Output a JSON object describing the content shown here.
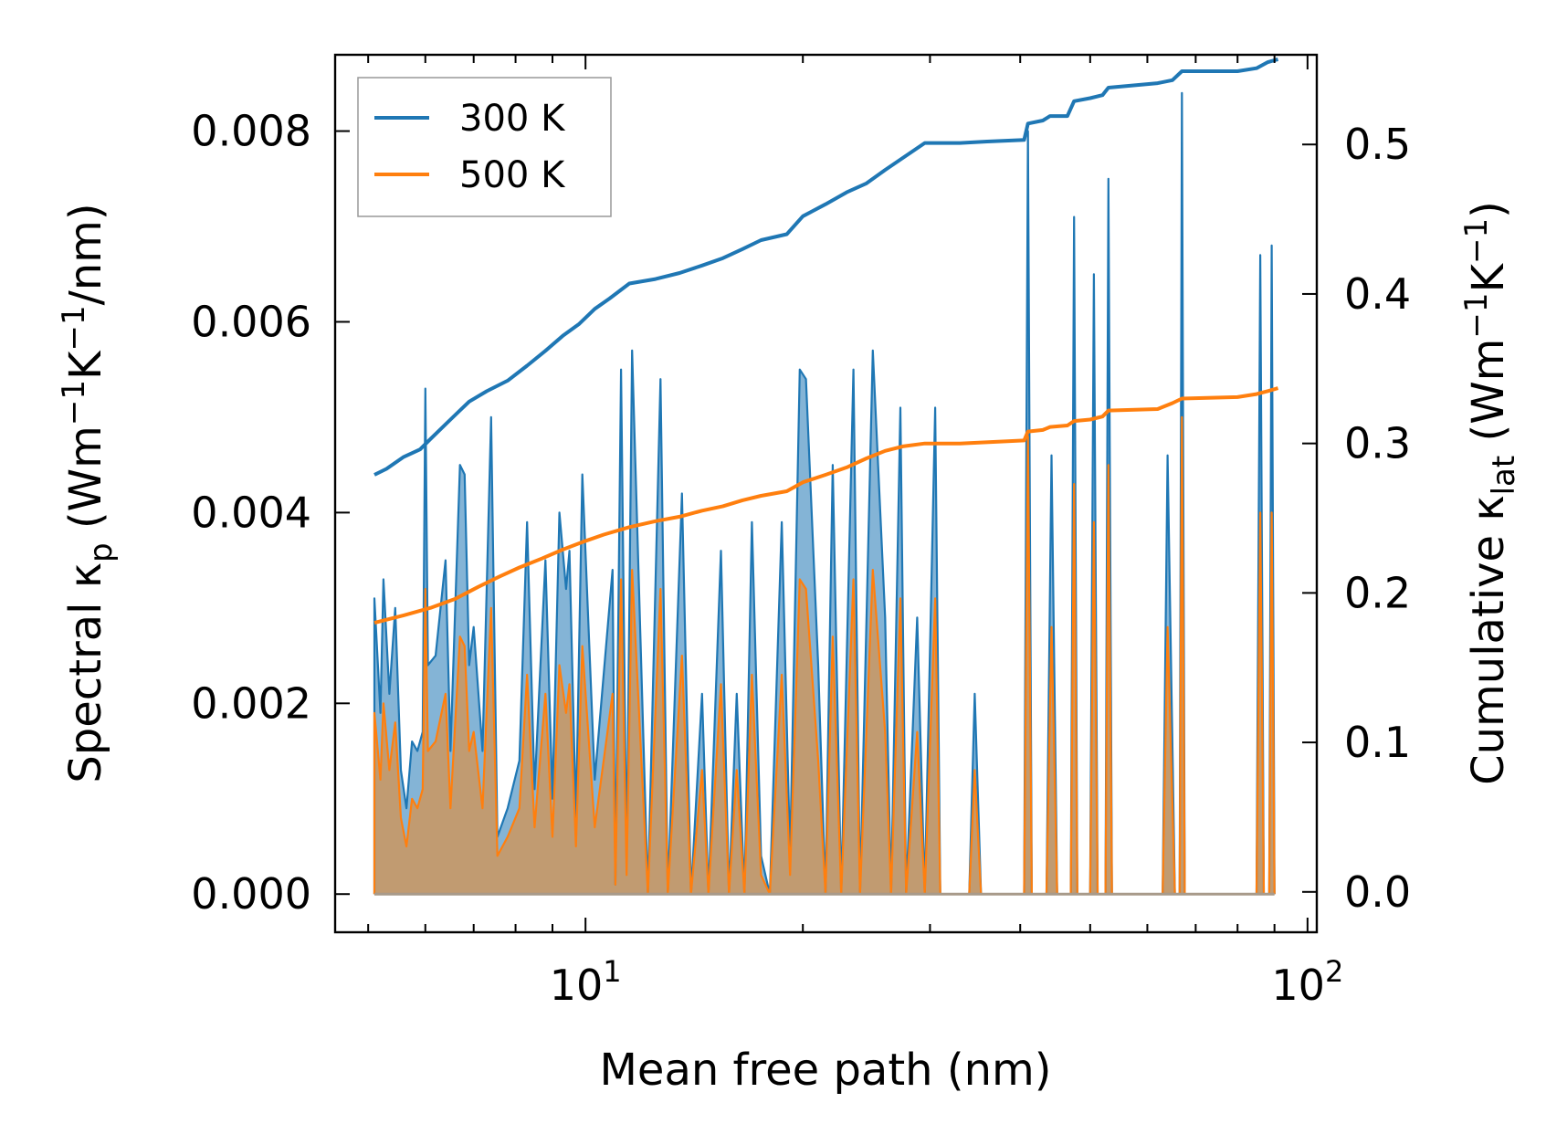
{
  "chart_data": {
    "type": "line",
    "title": "",
    "x_scale": "log",
    "xlabel": "Mean free path (nm)",
    "ylabel_left": {
      "main": "Spectral κ",
      "sub": "p",
      "units_open": " (Wm",
      "sup1": "−1",
      "mid": "K",
      "sup2": "−1",
      "units_close": "/nm)"
    },
    "ylabel_right": {
      "main": "Cumulative κ",
      "sub": "lat",
      "units_open": " (Wm",
      "sup1": "−1",
      "mid": "K",
      "sup2": "−1",
      "units_close": ")"
    },
    "xlim": [
      4.5,
      103
    ],
    "ylim_left": [
      -0.0004,
      0.0088
    ],
    "ylim_right": [
      -0.027,
      0.56
    ],
    "xticks": [
      {
        "value": 10,
        "base": "10",
        "exp": "1"
      },
      {
        "value": 100,
        "base": "10",
        "exp": "2"
      }
    ],
    "yticks_left": [
      "0.000",
      "0.002",
      "0.004",
      "0.006",
      "0.008"
    ],
    "yticks_right": [
      "0.0",
      "0.1",
      "0.2",
      "0.3",
      "0.4",
      "0.5"
    ],
    "legend": {
      "location": "upper-left",
      "entries": [
        {
          "label": "300 K",
          "color": "#1f77b4"
        },
        {
          "label": "500 K",
          "color": "#ff7f0e"
        }
      ]
    },
    "colors": {
      "blue": "#1f77b4",
      "orange": "#ff7f0e",
      "fill_overlap": "#c49a6c"
    },
    "spectral_300K": [
      [
        5.1,
        0
      ],
      [
        5.1,
        0.0031
      ],
      [
        5.2,
        0.0019
      ],
      [
        5.25,
        0.0033
      ],
      [
        5.35,
        0.0021
      ],
      [
        5.45,
        0.003
      ],
      [
        5.55,
        0.0013
      ],
      [
        5.65,
        0.0009
      ],
      [
        5.75,
        0.0016
      ],
      [
        5.85,
        0.0015
      ],
      [
        5.95,
        0.0017
      ],
      [
        6.0,
        0.0053
      ],
      [
        6.05,
        0.0024
      ],
      [
        6.2,
        0.0025
      ],
      [
        6.4,
        0.0035
      ],
      [
        6.5,
        0.0015
      ],
      [
        6.7,
        0.0045
      ],
      [
        6.8,
        0.0044
      ],
      [
        6.9,
        0.0024
      ],
      [
        7.0,
        0.0028
      ],
      [
        7.2,
        0.0015
      ],
      [
        7.4,
        0.005
      ],
      [
        7.55,
        0.0006
      ],
      [
        7.8,
        0.0009
      ],
      [
        8.1,
        0.0014
      ],
      [
        8.3,
        0.0039
      ],
      [
        8.5,
        0.0011
      ],
      [
        8.8,
        0.0035
      ],
      [
        9.0,
        0.001
      ],
      [
        9.2,
        0.004
      ],
      [
        9.4,
        0.0032
      ],
      [
        9.5,
        0.0036
      ],
      [
        9.7,
        0.0008
      ],
      [
        9.9,
        0.0044
      ],
      [
        10.3,
        0.0012
      ],
      [
        10.9,
        0.0034
      ],
      [
        11.0,
        0.0001
      ],
      [
        11.2,
        0.0055
      ],
      [
        11.4,
        0.0003
      ],
      [
        11.6,
        0.0057
      ],
      [
        12.2,
        0
      ],
      [
        12.7,
        0.0054
      ],
      [
        13.0,
        0
      ],
      [
        13.6,
        0.0042
      ],
      [
        14.0,
        0
      ],
      [
        14.5,
        0.0021
      ],
      [
        14.8,
        0
      ],
      [
        15.4,
        0.0036
      ],
      [
        15.8,
        0
      ],
      [
        16.2,
        0.0021
      ],
      [
        16.6,
        0
      ],
      [
        17.0,
        0.0039
      ],
      [
        17.5,
        0.0004
      ],
      [
        18.0,
        0
      ],
      [
        18.7,
        0.0039
      ],
      [
        19.2,
        0.0004
      ],
      [
        19.8,
        0.0055
      ],
      [
        20.2,
        0.0054
      ],
      [
        21.0,
        0.0024
      ],
      [
        21.5,
        0
      ],
      [
        22.0,
        0.0045
      ],
      [
        22.6,
        0
      ],
      [
        23.5,
        0.0055
      ],
      [
        24.0,
        0
      ],
      [
        25.0,
        0.0057
      ],
      [
        26.0,
        0.0029
      ],
      [
        26.5,
        0
      ],
      [
        27.3,
        0.0051
      ],
      [
        27.8,
        0
      ],
      [
        28.8,
        0.0029
      ],
      [
        29.5,
        0
      ],
      [
        30.5,
        0.0051
      ],
      [
        31.0,
        0
      ],
      [
        34.0,
        0
      ],
      [
        34.6,
        0.0021
      ],
      [
        35.3,
        0
      ],
      [
        40.5,
        0
      ],
      [
        41.0,
        0.008
      ],
      [
        41.5,
        0
      ],
      [
        43.5,
        0
      ],
      [
        44.2,
        0.0046
      ],
      [
        45.0,
        0
      ],
      [
        47.0,
        0
      ],
      [
        47.5,
        0.0071
      ],
      [
        48.0,
        0
      ],
      [
        50.0,
        0
      ],
      [
        50.6,
        0.0065
      ],
      [
        51.2,
        0
      ],
      [
        52.5,
        0
      ],
      [
        53.0,
        0.0075
      ],
      [
        53.6,
        0
      ],
      [
        63.0,
        0
      ],
      [
        64.0,
        0.0046
      ],
      [
        65.5,
        0
      ],
      [
        66.5,
        0
      ],
      [
        67.0,
        0.0084
      ],
      [
        67.6,
        0
      ],
      [
        85.0,
        0
      ],
      [
        86.0,
        0.0067
      ],
      [
        87.0,
        0
      ],
      [
        88.5,
        0
      ],
      [
        89.2,
        0.0068
      ],
      [
        90.0,
        0
      ]
    ],
    "spectral_500K": [
      [
        5.1,
        0
      ],
      [
        5.1,
        0.0019
      ],
      [
        5.2,
        0.0012
      ],
      [
        5.25,
        0.002
      ],
      [
        5.35,
        0.0013
      ],
      [
        5.45,
        0.0018
      ],
      [
        5.55,
        0.0008
      ],
      [
        5.65,
        0.0005
      ],
      [
        5.75,
        0.001
      ],
      [
        5.85,
        0.0009
      ],
      [
        5.95,
        0.0011
      ],
      [
        6.0,
        0.0032
      ],
      [
        6.05,
        0.0015
      ],
      [
        6.2,
        0.0016
      ],
      [
        6.4,
        0.0021
      ],
      [
        6.5,
        0.0009
      ],
      [
        6.7,
        0.0027
      ],
      [
        6.8,
        0.0026
      ],
      [
        6.9,
        0.0015
      ],
      [
        7.0,
        0.0017
      ],
      [
        7.2,
        0.0009
      ],
      [
        7.4,
        0.003
      ],
      [
        7.55,
        0.0004
      ],
      [
        7.8,
        0.0006
      ],
      [
        8.1,
        0.0009
      ],
      [
        8.3,
        0.0023
      ],
      [
        8.5,
        0.0007
      ],
      [
        8.8,
        0.0021
      ],
      [
        9.0,
        0.0006
      ],
      [
        9.2,
        0.0024
      ],
      [
        9.4,
        0.0019
      ],
      [
        9.5,
        0.0022
      ],
      [
        9.7,
        0.0005
      ],
      [
        9.9,
        0.0026
      ],
      [
        10.3,
        0.0007
      ],
      [
        10.9,
        0.0021
      ],
      [
        11.0,
        0.0001
      ],
      [
        11.2,
        0.0033
      ],
      [
        11.4,
        0.0002
      ],
      [
        11.6,
        0.0034
      ],
      [
        12.2,
        0
      ],
      [
        12.7,
        0.0032
      ],
      [
        13.0,
        0
      ],
      [
        13.6,
        0.0025
      ],
      [
        14.0,
        0
      ],
      [
        14.5,
        0.0013
      ],
      [
        14.8,
        0
      ],
      [
        15.4,
        0.0022
      ],
      [
        15.8,
        0
      ],
      [
        16.2,
        0.0013
      ],
      [
        16.6,
        0
      ],
      [
        17.0,
        0.0023
      ],
      [
        17.5,
        0.0002
      ],
      [
        18.0,
        0
      ],
      [
        18.7,
        0.0023
      ],
      [
        19.2,
        0.0002
      ],
      [
        19.8,
        0.0033
      ],
      [
        20.2,
        0.0032
      ],
      [
        21.0,
        0.0014
      ],
      [
        21.5,
        0
      ],
      [
        22.0,
        0.0027
      ],
      [
        22.6,
        0
      ],
      [
        23.5,
        0.0033
      ],
      [
        24.0,
        0
      ],
      [
        25.0,
        0.0034
      ],
      [
        26.0,
        0.0017
      ],
      [
        26.5,
        0
      ],
      [
        27.3,
        0.0031
      ],
      [
        27.8,
        0
      ],
      [
        28.8,
        0.0017
      ],
      [
        29.5,
        0
      ],
      [
        30.5,
        0.0031
      ],
      [
        31.0,
        0
      ],
      [
        34.0,
        0
      ],
      [
        34.6,
        0.0013
      ],
      [
        35.3,
        0
      ],
      [
        40.5,
        0
      ],
      [
        41.0,
        0.0048
      ],
      [
        41.5,
        0
      ],
      [
        43.5,
        0
      ],
      [
        44.2,
        0.0028
      ],
      [
        45.0,
        0
      ],
      [
        47.0,
        0
      ],
      [
        47.5,
        0.0043
      ],
      [
        48.0,
        0
      ],
      [
        50.0,
        0
      ],
      [
        50.6,
        0.0039
      ],
      [
        51.2,
        0
      ],
      [
        52.5,
        0
      ],
      [
        53.0,
        0.0045
      ],
      [
        53.6,
        0
      ],
      [
        63.0,
        0
      ],
      [
        64.0,
        0.0028
      ],
      [
        65.5,
        0
      ],
      [
        66.5,
        0
      ],
      [
        67.0,
        0.005
      ],
      [
        67.6,
        0
      ],
      [
        85.0,
        0
      ],
      [
        86.0,
        0.004
      ],
      [
        87.0,
        0
      ],
      [
        88.5,
        0
      ],
      [
        89.2,
        0.004
      ],
      [
        90.0,
        0
      ]
    ],
    "cumulative_300K": [
      [
        5.1,
        0.279
      ],
      [
        5.3,
        0.283
      ],
      [
        5.6,
        0.291
      ],
      [
        5.9,
        0.296
      ],
      [
        6.1,
        0.303
      ],
      [
        6.5,
        0.316
      ],
      [
        6.9,
        0.328
      ],
      [
        7.3,
        0.335
      ],
      [
        7.8,
        0.342
      ],
      [
        8.3,
        0.352
      ],
      [
        8.8,
        0.362
      ],
      [
        9.3,
        0.372
      ],
      [
        9.8,
        0.38
      ],
      [
        10.3,
        0.39
      ],
      [
        10.8,
        0.397
      ],
      [
        11.5,
        0.407
      ],
      [
        12.5,
        0.41
      ],
      [
        13.5,
        0.414
      ],
      [
        14.5,
        0.419
      ],
      [
        15.5,
        0.424
      ],
      [
        16.5,
        0.43
      ],
      [
        17.5,
        0.436
      ],
      [
        19.0,
        0.44
      ],
      [
        20.0,
        0.452
      ],
      [
        21.5,
        0.46
      ],
      [
        23.0,
        0.468
      ],
      [
        24.5,
        0.474
      ],
      [
        26.0,
        0.483
      ],
      [
        27.5,
        0.491
      ],
      [
        29.5,
        0.501
      ],
      [
        33.0,
        0.501
      ],
      [
        36.0,
        0.502
      ],
      [
        40.5,
        0.503
      ],
      [
        41.0,
        0.514
      ],
      [
        43.0,
        0.516
      ],
      [
        44.0,
        0.519
      ],
      [
        46.5,
        0.519
      ],
      [
        47.5,
        0.529
      ],
      [
        50.0,
        0.531
      ],
      [
        52.0,
        0.533
      ],
      [
        53.0,
        0.538
      ],
      [
        62.0,
        0.541
      ],
      [
        65.0,
        0.543
      ],
      [
        67.0,
        0.549
      ],
      [
        80.0,
        0.549
      ],
      [
        85.0,
        0.551
      ],
      [
        88.0,
        0.555
      ],
      [
        91.0,
        0.557
      ]
    ],
    "cumulative_500K": [
      [
        5.1,
        0.18
      ],
      [
        5.6,
        0.185
      ],
      [
        6.1,
        0.19
      ],
      [
        6.6,
        0.196
      ],
      [
        7.1,
        0.204
      ],
      [
        7.6,
        0.211
      ],
      [
        8.1,
        0.217
      ],
      [
        8.7,
        0.223
      ],
      [
        9.3,
        0.229
      ],
      [
        9.9,
        0.234
      ],
      [
        10.6,
        0.239
      ],
      [
        11.5,
        0.244
      ],
      [
        12.5,
        0.248
      ],
      [
        13.5,
        0.251
      ],
      [
        14.5,
        0.255
      ],
      [
        15.5,
        0.258
      ],
      [
        16.5,
        0.262
      ],
      [
        17.5,
        0.265
      ],
      [
        19.0,
        0.268
      ],
      [
        20.0,
        0.274
      ],
      [
        21.5,
        0.279
      ],
      [
        23.0,
        0.284
      ],
      [
        24.5,
        0.29
      ],
      [
        26.0,
        0.295
      ],
      [
        27.5,
        0.298
      ],
      [
        29.5,
        0.3
      ],
      [
        33.0,
        0.3
      ],
      [
        40.5,
        0.302
      ],
      [
        41.0,
        0.308
      ],
      [
        43.0,
        0.309
      ],
      [
        44.0,
        0.311
      ],
      [
        46.5,
        0.312
      ],
      [
        47.5,
        0.315
      ],
      [
        50.0,
        0.316
      ],
      [
        52.0,
        0.318
      ],
      [
        53.0,
        0.322
      ],
      [
        62.0,
        0.323
      ],
      [
        65.0,
        0.327
      ],
      [
        67.0,
        0.33
      ],
      [
        80.0,
        0.331
      ],
      [
        85.0,
        0.333
      ],
      [
        88.0,
        0.335
      ],
      [
        91.0,
        0.337
      ]
    ]
  }
}
